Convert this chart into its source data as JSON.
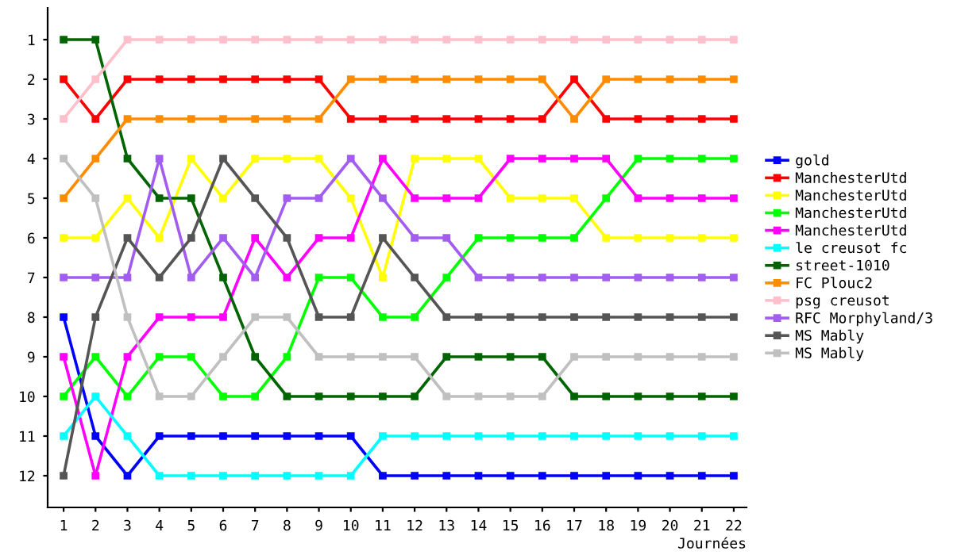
{
  "chart_data": {
    "type": "line",
    "xlabel": "Journées",
    "x": [
      1,
      2,
      3,
      4,
      5,
      6,
      7,
      8,
      9,
      10,
      11,
      12,
      13,
      14,
      15,
      16,
      17,
      18,
      19,
      20,
      21,
      22
    ],
    "xlim": [
      0.5,
      22.4
    ],
    "xticks": [
      1,
      2,
      3,
      4,
      5,
      6,
      7,
      8,
      9,
      10,
      11,
      12,
      13,
      14,
      15,
      16,
      17,
      18,
      19,
      20,
      21,
      22
    ],
    "ylim": [
      12.8,
      0.2
    ],
    "yticks": [
      1,
      2,
      3,
      4,
      5,
      6,
      7,
      8,
      9,
      10,
      11,
      12
    ],
    "grid": false,
    "legend": "right",
    "marker": "square",
    "line_style": "solid",
    "series": [
      {
        "name": "gold",
        "color": "#0000ff",
        "values": [
          8,
          11,
          12,
          11,
          11,
          11,
          11,
          11,
          11,
          11,
          12,
          12,
          12,
          12,
          12,
          12,
          12,
          12,
          12,
          12,
          12,
          12
        ]
      },
      {
        "name": "ManchesterUtd",
        "color": "#ff0000",
        "values": [
          2,
          3,
          2,
          2,
          2,
          2,
          2,
          2,
          2,
          3,
          3,
          3,
          3,
          3,
          3,
          3,
          2,
          3,
          3,
          3,
          3,
          3
        ]
      },
      {
        "name": "ManchesterUtd",
        "color": "#ffff00",
        "values": [
          6,
          6,
          5,
          6,
          4,
          5,
          4,
          4,
          4,
          5,
          7,
          4,
          4,
          4,
          5,
          5,
          5,
          6,
          6,
          6,
          6,
          6
        ]
      },
      {
        "name": "ManchesterUtd",
        "color": "#00ff00",
        "values": [
          10,
          9,
          10,
          9,
          9,
          10,
          10,
          9,
          7,
          7,
          8,
          8,
          7,
          6,
          6,
          6,
          6,
          5,
          4,
          4,
          4,
          4
        ]
      },
      {
        "name": "ManchesterUtd",
        "color": "#ff00ff",
        "values": [
          9,
          12,
          9,
          8,
          8,
          8,
          6,
          7,
          6,
          6,
          4,
          5,
          5,
          5,
          4,
          4,
          4,
          4,
          5,
          5,
          5,
          5
        ]
      },
      {
        "name": "le creusot fc",
        "color": "#00ffff",
        "values": [
          11,
          10,
          11,
          12,
          12,
          12,
          12,
          12,
          12,
          12,
          11,
          11,
          11,
          11,
          11,
          11,
          11,
          11,
          11,
          11,
          11,
          11
        ]
      },
      {
        "name": "street-1010",
        "color": "#006400",
        "values": [
          1,
          1,
          4,
          5,
          5,
          7,
          9,
          10,
          10,
          10,
          10,
          10,
          9,
          9,
          9,
          9,
          10,
          10,
          10,
          10,
          10,
          10
        ]
      },
      {
        "name": "FC Plouc2",
        "color": "#ff8c00",
        "values": [
          5,
          4,
          3,
          3,
          3,
          3,
          3,
          3,
          3,
          2,
          2,
          2,
          2,
          2,
          2,
          2,
          3,
          2,
          2,
          2,
          2,
          2
        ]
      },
      {
        "name": "psg creusot",
        "color": "#ffc0cb",
        "values": [
          3,
          2,
          1,
          1,
          1,
          1,
          1,
          1,
          1,
          1,
          1,
          1,
          1,
          1,
          1,
          1,
          1,
          1,
          1,
          1,
          1,
          1
        ]
      },
      {
        "name": "RFC Morphyland/3",
        "color": "#a35cf0",
        "values": [
          7,
          7,
          7,
          4,
          7,
          6,
          7,
          5,
          5,
          4,
          5,
          6,
          6,
          7,
          7,
          7,
          7,
          7,
          7,
          7,
          7,
          7
        ]
      },
      {
        "name": "MS Mably",
        "color": "#555555",
        "values": [
          12,
          8,
          6,
          7,
          6,
          4,
          5,
          6,
          8,
          8,
          6,
          7,
          8,
          8,
          8,
          8,
          8,
          8,
          8,
          8,
          8,
          8
        ]
      },
      {
        "name": "MS Mably",
        "color": "#c0c0c0",
        "values": [
          4,
          5,
          8,
          10,
          10,
          9,
          8,
          8,
          9,
          9,
          9,
          9,
          10,
          10,
          10,
          10,
          9,
          9,
          9,
          9,
          9,
          9
        ]
      }
    ]
  }
}
